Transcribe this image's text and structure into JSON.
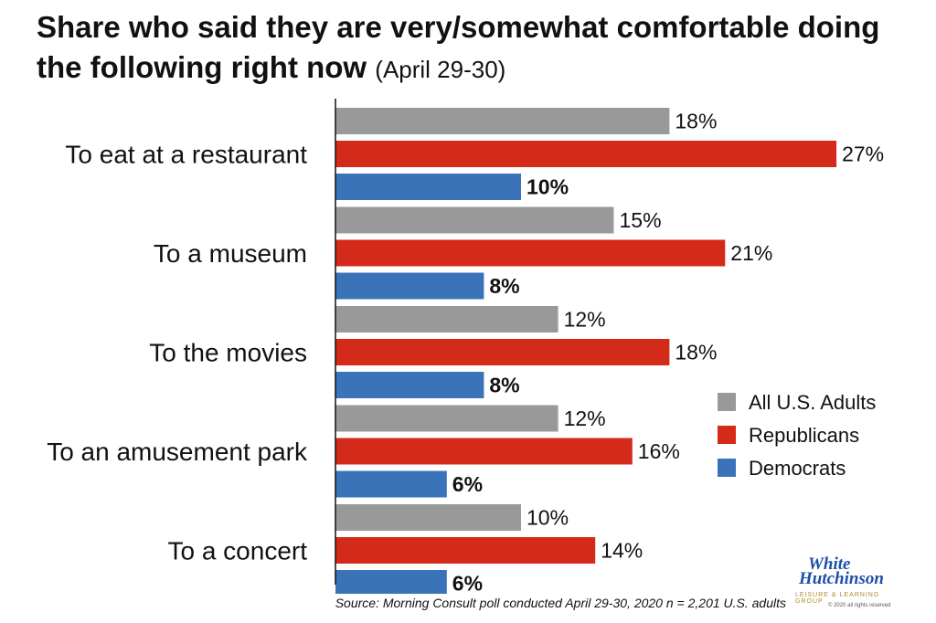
{
  "header": {
    "title": "Share who said they are very/somewhat comfortable doing the following right now",
    "subtitle": "(April 29-30)"
  },
  "chart_data": {
    "type": "bar",
    "orientation": "horizontal",
    "categories": [
      "To eat at a restaurant",
      "To a museum",
      "To the movies",
      "To an amusement park",
      "To a concert"
    ],
    "series": [
      {
        "name": "All U.S. Adults",
        "color": "#999999",
        "values": [
          18,
          15,
          12,
          12,
          10
        ]
      },
      {
        "name": "Republicans",
        "color": "#d42a1a",
        "values": [
          27,
          21,
          18,
          16,
          14
        ]
      },
      {
        "name": "Democrats",
        "color": "#3a73b8",
        "values": [
          10,
          8,
          8,
          6,
          6
        ]
      }
    ],
    "value_suffix": "%",
    "xlim": [
      0,
      27
    ],
    "grid": false,
    "legend_position": "right"
  },
  "footer": {
    "source": "Source: Morning Consult poll conducted April 29-30, 2020 n = 2,201 U.S. adults"
  },
  "logo": {
    "line1": "White",
    "line2": "Hutchinson",
    "tagline": "LEISURE & LEARNING GROUP",
    "copyright": "© 2020 all rights reserved"
  }
}
